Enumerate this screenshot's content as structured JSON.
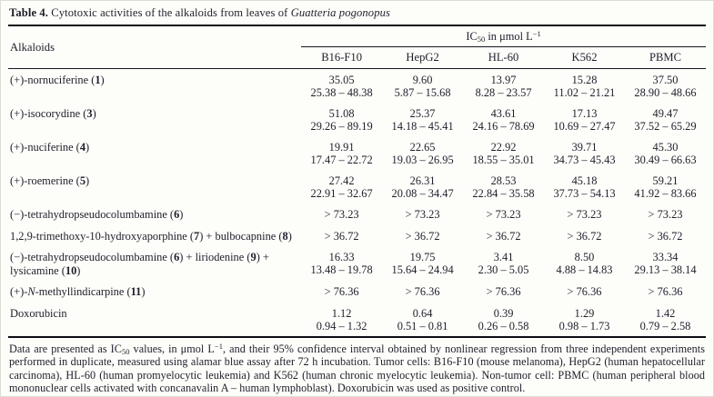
{
  "title": {
    "label": "Table 4.",
    "text": " Cytotoxic activities of the alkaloids from leaves of ",
    "species": "Guatteria pogonopus"
  },
  "table": {
    "row_header_label": "Alkaloids",
    "spanner": "IC~50~ in μmol L^−1^",
    "col_headers": [
      "B16-F10",
      "HepG2",
      "HL-60",
      "K562",
      "PBMC"
    ],
    "rows": [
      {
        "name": "(+)-nornuciferine (**1**)",
        "cells": [
          {
            "v": "35.05",
            "ci": "25.38 – 48.38"
          },
          {
            "v": "9.60",
            "ci": "5.87 – 15.68"
          },
          {
            "v": "13.97",
            "ci": "8.28 – 23.57"
          },
          {
            "v": "15.28",
            "ci": "11.02 – 21.21"
          },
          {
            "v": "37.50",
            "ci": "28.90 – 48.66"
          }
        ]
      },
      {
        "name": "(+)-isocorydine (**3**)",
        "cells": [
          {
            "v": "51.08",
            "ci": "29.26 – 89.19"
          },
          {
            "v": "25.37",
            "ci": "14.18 – 45.41"
          },
          {
            "v": "43.61",
            "ci": "24.16 – 78.69"
          },
          {
            "v": "17.13",
            "ci": "10.69 – 27.47"
          },
          {
            "v": "49.47",
            "ci": "37.52 – 65.29"
          }
        ]
      },
      {
        "name": "(+)-nuciferine (**4**)",
        "cells": [
          {
            "v": "19.91",
            "ci": "17.47 – 22.72"
          },
          {
            "v": "22.65",
            "ci": "19.03 – 26.95"
          },
          {
            "v": "22.92",
            "ci": "18.55 – 35.01"
          },
          {
            "v": "39.71",
            "ci": "34.73 – 45.43"
          },
          {
            "v": "45.30",
            "ci": "30.49 – 66.63"
          }
        ]
      },
      {
        "name": "(+)-roemerine (**5**)",
        "cells": [
          {
            "v": "27.42",
            "ci": "22.91 – 32.67"
          },
          {
            "v": "26.31",
            "ci": "20.08 – 34.47"
          },
          {
            "v": "28.53",
            "ci": "22.84 – 35.58"
          },
          {
            "v": "45.18",
            "ci": "37.73 – 54.13"
          },
          {
            "v": "59.21",
            "ci": "41.92 – 83.66"
          }
        ]
      },
      {
        "name": "(−)-tetrahydropseudocolumbamine (**6**)",
        "cells": [
          {
            "v": "> 73.23"
          },
          {
            "v": "> 73.23"
          },
          {
            "v": "> 73.23"
          },
          {
            "v": "> 73.23"
          },
          {
            "v": "> 73.23"
          }
        ]
      },
      {
        "name": "1,2,9-trimethoxy-10-hydroxyaporphine (**7**) + bulbocapnine (**8**)",
        "cells": [
          {
            "v": "> 36.72"
          },
          {
            "v": "> 36.72"
          },
          {
            "v": "> 36.72"
          },
          {
            "v": "> 36.72"
          },
          {
            "v": "> 36.72"
          }
        ]
      },
      {
        "name": "(−)-tetrahydropseudocolumbamine (**6**) + liriodenine (**9**) + lysicamine (**10**)",
        "cells": [
          {
            "v": "16.33",
            "ci": "13.48 – 19.78"
          },
          {
            "v": "19.75",
            "ci": "15.64 – 24.94"
          },
          {
            "v": "3.41",
            "ci": "2.30 – 5.05"
          },
          {
            "v": "8.50",
            "ci": "4.88 – 14.83"
          },
          {
            "v": "33.34",
            "ci": "29.13 – 38.14"
          }
        ]
      },
      {
        "name": "(+)-*N*-methyllindicarpine (**11**)",
        "cells": [
          {
            "v": "> 76.36"
          },
          {
            "v": "> 76.36"
          },
          {
            "v": "> 76.36"
          },
          {
            "v": "> 76.36"
          },
          {
            "v": "> 76.36"
          }
        ]
      },
      {
        "name": "Doxorubicin",
        "cells": [
          {
            "v": "1.12",
            "ci": "0.94 – 1.32"
          },
          {
            "v": "0.64",
            "ci": "0.51 – 0.81"
          },
          {
            "v": "0.39",
            "ci": "0.26 – 0.58"
          },
          {
            "v": "1.29",
            "ci": "0.98 – 1.73"
          },
          {
            "v": "1.42",
            "ci": "0.79 – 2.58"
          }
        ]
      }
    ]
  },
  "footnote": "Data are presented as IC~50~ values, in μmol L^−1^, and their 95% confidence interval obtained by nonlinear regression from three independent experiments performed in duplicate, measured using alamar blue assay after 72 h incubation. Tumor cells: B16-F10 (mouse melanoma), HepG2 (human hepatocellular carcinoma), HL-60 (human promyelocytic leukemia) and K562 (human chronic myelocytic leukemia). Non-tumor cell: PBMC (human peripheral blood mononuclear cells activated with concanavalin A – human lymphoblast). Doxorubicin was used as positive control.",
  "colors": {
    "text": "#1e1e2a",
    "rule": "#0c0c14",
    "background": "#fdfdfa"
  }
}
